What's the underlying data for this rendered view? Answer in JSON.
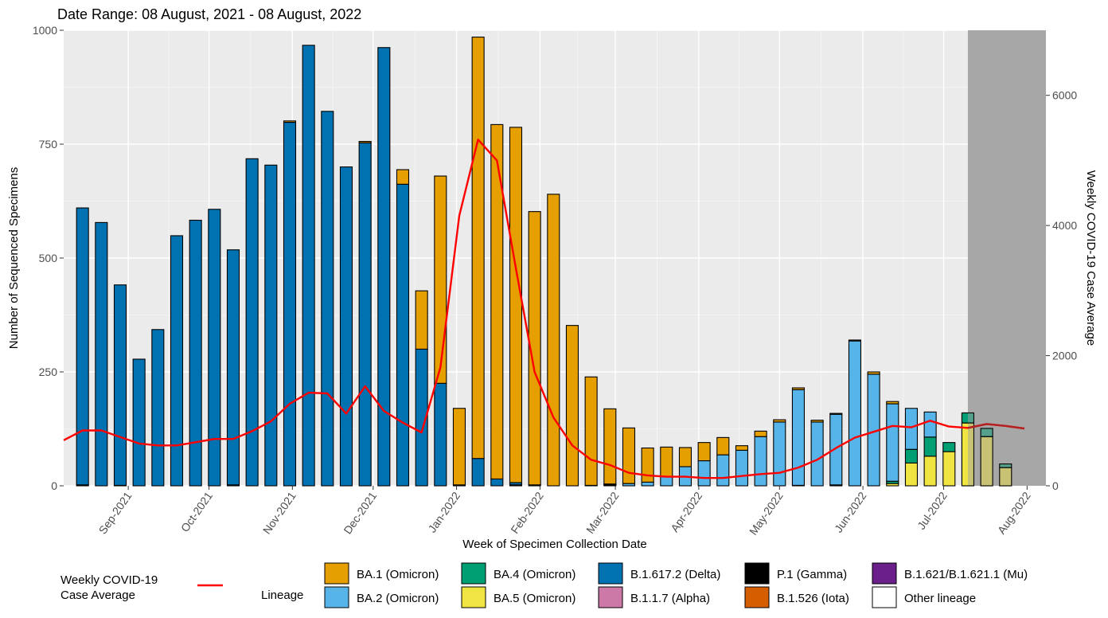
{
  "chart_data": {
    "type": "bar",
    "stacked": true,
    "title": "Date Range: 08 August, 2021 - 08 August, 2022",
    "xlabel": "Week of Specimen Collection Date",
    "ylabel": "Number of Sequenced Specimens",
    "y2label": "Weekly COVID-19 Case Average",
    "ylim": [
      0,
      1000
    ],
    "y2lim": [
      0,
      7000
    ],
    "yticks": [
      0,
      250,
      500,
      750,
      1000
    ],
    "y2ticks": [
      0,
      2000,
      4000,
      6000
    ],
    "grid": true,
    "x_tick_labels": [
      "Sep-2021",
      "Oct-2021",
      "Nov-2021",
      "Dec-2021",
      "Jan-2022",
      "Feb-2022",
      "Mar-2022",
      "Apr-2022",
      "May-2022",
      "Jun-2022",
      "Jul-2022",
      "Aug-2022"
    ],
    "x": [
      "2021-08-15",
      "2021-08-22",
      "2021-08-29",
      "2021-09-05",
      "2021-09-12",
      "2021-09-19",
      "2021-09-26",
      "2021-10-03",
      "2021-10-10",
      "2021-10-17",
      "2021-10-24",
      "2021-10-31",
      "2021-11-07",
      "2021-11-14",
      "2021-11-21",
      "2021-11-28",
      "2021-12-05",
      "2021-12-12",
      "2021-12-19",
      "2021-12-26",
      "2022-01-02",
      "2022-01-09",
      "2022-01-16",
      "2022-01-23",
      "2022-01-30",
      "2022-02-06",
      "2022-02-13",
      "2022-02-20",
      "2022-02-27",
      "2022-03-06",
      "2022-03-13",
      "2022-03-20",
      "2022-03-27",
      "2022-04-03",
      "2022-04-10",
      "2022-04-17",
      "2022-04-24",
      "2022-05-01",
      "2022-05-08",
      "2022-05-15",
      "2022-05-22",
      "2022-05-29",
      "2022-06-05",
      "2022-06-12",
      "2022-06-19",
      "2022-06-26",
      "2022-07-03",
      "2022-07-10",
      "2022-07-17",
      "2022-07-24"
    ],
    "series": [
      {
        "name": "Other lineage",
        "color": "#ffffff",
        "values": [
          0,
          0,
          0,
          0,
          0,
          0,
          0,
          0,
          0,
          0,
          0,
          0,
          0,
          0,
          0,
          0,
          0,
          0,
          0,
          0,
          0,
          0,
          0,
          0,
          0,
          0,
          0,
          0,
          0,
          0,
          0,
          0,
          0,
          0,
          0,
          0,
          0,
          0,
          0,
          0,
          0,
          0,
          0,
          0,
          0,
          0,
          0,
          0,
          0,
          0
        ]
      },
      {
        "name": "P.1 (Gamma)",
        "color": "#000000",
        "values": [
          2,
          0,
          1,
          0,
          0,
          0,
          0,
          0,
          2,
          0,
          0,
          0,
          0,
          0,
          0,
          0,
          0,
          0,
          0,
          0,
          2,
          0,
          0,
          2,
          2,
          0,
          0,
          1,
          2,
          0,
          0,
          0,
          0,
          0,
          0,
          0,
          0,
          0,
          1,
          0,
          2,
          0,
          0,
          0,
          0,
          0,
          0,
          0,
          0,
          0
        ]
      },
      {
        "name": "B.1.526 (Iota)",
        "color": "#d55e00",
        "values": [
          0,
          0,
          0,
          0,
          0,
          0,
          0,
          0,
          0,
          0,
          0,
          0,
          0,
          0,
          0,
          0,
          0,
          0,
          0,
          0,
          0,
          0,
          0,
          0,
          0,
          0,
          0,
          0,
          0,
          0,
          0,
          0,
          0,
          0,
          0,
          0,
          0,
          0,
          0,
          0,
          0,
          0,
          0,
          0,
          0,
          0,
          0,
          0,
          0,
          0
        ]
      },
      {
        "name": "B.1.1.7 (Alpha)",
        "color": "#cc79a7",
        "values": [
          0,
          0,
          0,
          0,
          0,
          0,
          0,
          0,
          0,
          0,
          0,
          0,
          0,
          0,
          0,
          0,
          0,
          0,
          0,
          0,
          0,
          0,
          0,
          0,
          0,
          0,
          0,
          0,
          0,
          0,
          0,
          0,
          0,
          0,
          0,
          0,
          0,
          0,
          0,
          0,
          0,
          0,
          0,
          0,
          0,
          0,
          0,
          0,
          0,
          0
        ]
      },
      {
        "name": "B.1.621/B.1.621.1 (Mu)",
        "color": "#6a1f8a",
        "values": [
          0,
          0,
          0,
          0,
          0,
          0,
          0,
          0,
          0,
          0,
          0,
          0,
          0,
          0,
          0,
          0,
          0,
          0,
          0,
          0,
          0,
          0,
          0,
          0,
          0,
          0,
          0,
          0,
          0,
          0,
          0,
          0,
          0,
          0,
          0,
          0,
          0,
          0,
          0,
          0,
          0,
          0,
          0,
          0,
          0,
          0,
          0,
          0,
          0,
          0
        ]
      },
      {
        "name": "B.1.617.2 (Delta)",
        "color": "#0072b2",
        "values": [
          608,
          578,
          440,
          278,
          343,
          549,
          583,
          607,
          516,
          718,
          704,
          798,
          967,
          822,
          700,
          753,
          962,
          662,
          300,
          225,
          0,
          60,
          15,
          5,
          0,
          0,
          0,
          0,
          0,
          0,
          0,
          0,
          0,
          0,
          0,
          0,
          0,
          0,
          0,
          0,
          0,
          0,
          0,
          0,
          0,
          0,
          0,
          0,
          0,
          0
        ]
      },
      {
        "name": "BA.5 (Omicron)",
        "color": "#f0e442",
        "values": [
          0,
          0,
          0,
          0,
          0,
          0,
          0,
          0,
          0,
          0,
          0,
          0,
          0,
          0,
          0,
          0,
          0,
          0,
          0,
          0,
          0,
          0,
          0,
          0,
          0,
          0,
          0,
          0,
          0,
          0,
          0,
          0,
          0,
          0,
          0,
          0,
          0,
          0,
          0,
          0,
          0,
          0,
          0,
          5,
          50,
          65,
          75,
          138,
          108,
          40
        ]
      },
      {
        "name": "BA.4 (Omicron)",
        "color": "#009e73",
        "values": [
          0,
          0,
          0,
          0,
          0,
          0,
          0,
          0,
          0,
          0,
          0,
          0,
          0,
          0,
          0,
          0,
          0,
          0,
          0,
          0,
          0,
          0,
          0,
          0,
          0,
          0,
          0,
          0,
          0,
          0,
          0,
          0,
          0,
          0,
          0,
          0,
          0,
          0,
          0,
          0,
          0,
          0,
          0,
          5,
          30,
          42,
          20,
          22,
          18,
          8
        ]
      },
      {
        "name": "BA.2 (Omicron)",
        "color": "#56b4e9",
        "values": [
          0,
          0,
          0,
          0,
          0,
          0,
          0,
          0,
          0,
          0,
          0,
          0,
          0,
          0,
          0,
          0,
          0,
          0,
          0,
          0,
          0,
          0,
          0,
          0,
          0,
          0,
          0,
          0,
          2,
          5,
          8,
          20,
          42,
          55,
          68,
          78,
          108,
          140,
          210,
          140,
          155,
          318,
          245,
          170,
          90,
          55,
          0,
          0,
          0,
          0
        ]
      },
      {
        "name": "BA.1 (Omicron)",
        "color": "#e69f00",
        "values": [
          0,
          0,
          0,
          0,
          0,
          0,
          0,
          0,
          0,
          0,
          0,
          3,
          0,
          0,
          0,
          3,
          0,
          32,
          128,
          455,
          168,
          925,
          778,
          780,
          600,
          640,
          352,
          238,
          165,
          122,
          75,
          65,
          42,
          40,
          38,
          10,
          12,
          5,
          4,
          4,
          2,
          2,
          5,
          5,
          0,
          0,
          0,
          0,
          0,
          0
        ]
      }
    ],
    "line_series": {
      "name": "Weekly COVID-19 Case Average",
      "color": "#ff0000",
      "x": [
        "2021-08-08",
        "2021-08-15",
        "2021-08-22",
        "2021-08-29",
        "2021-09-05",
        "2021-09-12",
        "2021-09-19",
        "2021-09-26",
        "2021-10-03",
        "2021-10-10",
        "2021-10-17",
        "2021-10-24",
        "2021-10-31",
        "2021-11-07",
        "2021-11-14",
        "2021-11-21",
        "2021-11-28",
        "2021-12-05",
        "2021-12-12",
        "2021-12-19",
        "2021-12-26",
        "2022-01-02",
        "2022-01-09",
        "2022-01-16",
        "2022-01-23",
        "2022-01-30",
        "2022-02-06",
        "2022-02-13",
        "2022-02-20",
        "2022-02-27",
        "2022-03-06",
        "2022-03-13",
        "2022-03-20",
        "2022-03-27",
        "2022-04-03",
        "2022-04-10",
        "2022-04-17",
        "2022-04-24",
        "2022-05-01",
        "2022-05-08",
        "2022-05-15",
        "2022-05-22",
        "2022-05-29",
        "2022-06-05",
        "2022-06-12",
        "2022-06-19",
        "2022-06-26",
        "2022-07-03",
        "2022-07-10",
        "2022-07-17",
        "2022-07-24",
        "2022-07-31"
      ],
      "values": [
        700,
        850,
        850,
        750,
        650,
        620,
        620,
        670,
        720,
        720,
        840,
        990,
        1260,
        1430,
        1420,
        1110,
        1530,
        1150,
        970,
        820,
        1820,
        4150,
        5320,
        5000,
        3350,
        1750,
        1050,
        620,
        400,
        320,
        200,
        160,
        140,
        140,
        120,
        120,
        150,
        180,
        200,
        280,
        400,
        580,
        740,
        830,
        920,
        900,
        1000,
        910,
        890,
        950,
        920,
        880
      ]
    },
    "shaded_region": {
      "from": "2022-07-10",
      "to": "2022-08-08",
      "color": "#a3a3a3"
    },
    "legend": {
      "position": "bottom",
      "line_label": "Weekly COVID-19 Case Average",
      "fill_title": "Lineage",
      "fill_items": [
        {
          "label": "BA.1 (Omicron)",
          "color": "#e69f00"
        },
        {
          "label": "BA.2 (Omicron)",
          "color": "#56b4e9"
        },
        {
          "label": "BA.4 (Omicron)",
          "color": "#009e73"
        },
        {
          "label": "BA.5 (Omicron)",
          "color": "#f0e442"
        },
        {
          "label": "B.1.617.2 (Delta)",
          "color": "#0072b2"
        },
        {
          "label": "B.1.1.7 (Alpha)",
          "color": "#cc79a7"
        },
        {
          "label": "P.1 (Gamma)",
          "color": "#000000"
        },
        {
          "label": "B.1.526 (Iota)",
          "color": "#d55e00"
        },
        {
          "label": "B.1.621/B.1.621.1 (Mu)",
          "color": "#6a1f8a"
        },
        {
          "label": "Other lineage",
          "color": "#ffffff"
        }
      ]
    }
  }
}
